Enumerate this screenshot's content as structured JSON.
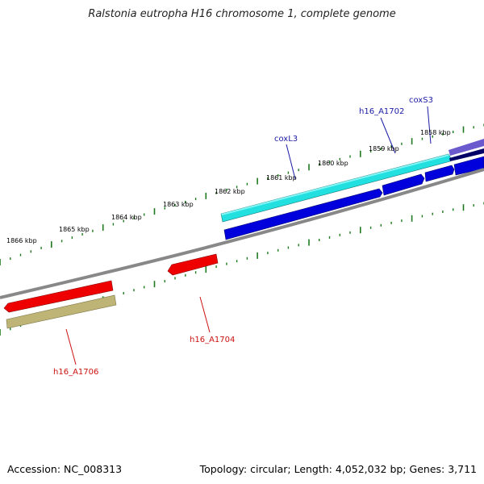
{
  "title": "Ralstonia eutropha H16 chromosome 1, complete genome",
  "footer": {
    "accession": "Accession: NC_008313",
    "summary": "Topology: circular; Length: 4,052,032 bp; Genes: 3,711"
  },
  "scale": {
    "ticks": [
      {
        "label": "1858 kbp",
        "kbp": 1858
      },
      {
        "label": "1859 kbp",
        "kbp": 1859
      },
      {
        "label": "1860 kbp",
        "kbp": 1860
      },
      {
        "label": "1861 kbp",
        "kbp": 1861
      },
      {
        "label": "1862 kbp",
        "kbp": 1862
      },
      {
        "label": "1863 kbp",
        "kbp": 1863
      },
      {
        "label": "1864 kbp",
        "kbp": 1864
      },
      {
        "label": "1865 kbp",
        "kbp": 1865
      },
      {
        "label": "1866 kbp",
        "kbp": 1866
      }
    ]
  },
  "labels": [
    {
      "name": "coxS3",
      "color": "#1a1aa6"
    },
    {
      "name": "h16_A1702",
      "color": "#1a1aa6"
    },
    {
      "name": "coxL3",
      "color": "#1a1aa6"
    },
    {
      "name": "h16_A1704",
      "color": "#cc1111"
    },
    {
      "name": "h16_A1706",
      "color": "#cc1111"
    }
  ],
  "colors": {
    "backbone": "#888888",
    "tick": "#1e7a1e",
    "cds_forward": "#0000dd",
    "cds_highlight": "#22e0e0",
    "cds_reverse": "#ee0000",
    "gene_reverse": "#bdb476",
    "purple": "#6a5acd",
    "navy": "#000066"
  }
}
